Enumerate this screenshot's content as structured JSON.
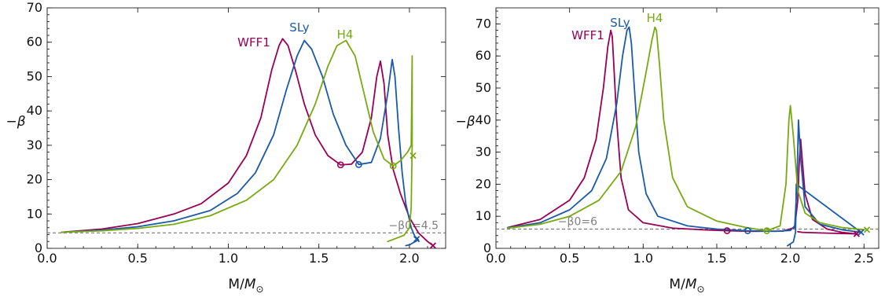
{
  "colors": {
    "WFF1": "#990055",
    "SLy": "#1a5aa8",
    "H4": "#77aa11"
  },
  "chart_data": [
    {
      "type": "line",
      "title": "",
      "xlabel": "M/M_⊙",
      "ylabel": "−β",
      "xlim": [
        0.0,
        2.2
      ],
      "ylim": [
        0,
        70
      ],
      "xticks": [
        "0.0",
        "0.5",
        "1.0",
        "1.5",
        "2.0"
      ],
      "yticks": [
        "0",
        "10",
        "20",
        "30",
        "40",
        "50",
        "60",
        "70"
      ],
      "grid": false,
      "reference_line": {
        "y": 4.5,
        "label": "−β0=4.5"
      },
      "series": [
        {
          "name": "WFF1",
          "x": [
            0.08,
            0.3,
            0.5,
            0.7,
            0.85,
            1.0,
            1.1,
            1.18,
            1.24,
            1.28,
            1.3,
            1.33,
            1.37,
            1.42,
            1.48,
            1.55,
            1.62,
            1.68,
            1.74,
            1.79,
            1.82,
            1.84,
            1.86,
            1.88,
            1.91,
            1.95,
            2.0,
            2.05,
            2.1,
            2.13
          ],
          "y": [
            4.7,
            5.6,
            7.2,
            10.0,
            13.0,
            19.0,
            27.0,
            38.0,
            52.0,
            59.0,
            61.0,
            59.0,
            52.0,
            42.0,
            33.0,
            27.0,
            24.3,
            24.5,
            28.0,
            38.0,
            50.0,
            54.5,
            48.0,
            33.0,
            23.0,
            16.0,
            9.0,
            4.5,
            2.0,
            0.8
          ],
          "markers": [
            {
              "type": "o",
              "x": 1.62,
              "y": 24.3
            },
            {
              "type": "x",
              "x": 2.13,
              "y": 0.8
            }
          ]
        },
        {
          "name": "SLy",
          "x": [
            0.08,
            0.3,
            0.5,
            0.7,
            0.9,
            1.05,
            1.15,
            1.25,
            1.32,
            1.38,
            1.42,
            1.46,
            1.52,
            1.58,
            1.65,
            1.72,
            1.79,
            1.84,
            1.88,
            1.905,
            1.92,
            1.94,
            1.96,
            1.98,
            2.01,
            2.03,
            2.05,
            2.02,
            2.0,
            1.98
          ],
          "y": [
            4.7,
            5.3,
            6.3,
            8.0,
            11.0,
            16.0,
            22.0,
            33.0,
            46.0,
            56.0,
            60.5,
            58.0,
            50.0,
            39.0,
            30.0,
            24.4,
            25.0,
            32.0,
            45.0,
            55.0,
            50.0,
            35.0,
            22.0,
            13.0,
            6.0,
            3.5,
            2.5,
            1.6,
            1.0,
            0.8
          ],
          "markers": [
            {
              "type": "o",
              "x": 1.72,
              "y": 24.4
            },
            {
              "type": "x",
              "x": 2.04,
              "y": 2.7
            }
          ]
        },
        {
          "name": "H4",
          "x": [
            0.08,
            0.3,
            0.5,
            0.7,
            0.9,
            1.1,
            1.25,
            1.38,
            1.48,
            1.55,
            1.6,
            1.65,
            1.7,
            1.75,
            1.8,
            1.86,
            1.91,
            1.95,
            1.99,
            2.01,
            2.015,
            2.015,
            2.01,
            2.0,
            1.97,
            1.92,
            1.88
          ],
          "y": [
            4.7,
            5.1,
            5.8,
            7.0,
            9.5,
            14.0,
            20.0,
            30.0,
            42.0,
            53.0,
            59.0,
            60.5,
            56.0,
            45.0,
            34.0,
            26.0,
            24.0,
            25.5,
            28.0,
            30.0,
            56.0,
            30.0,
            12.0,
            6.0,
            3.8,
            2.8,
            2.0
          ],
          "markers": [
            {
              "type": "o",
              "x": 1.91,
              "y": 24.0
            },
            {
              "type": "x",
              "x": 2.02,
              "y": 27.0
            }
          ]
        }
      ]
    },
    {
      "type": "line",
      "title": "",
      "xlabel": "M/M_⊙",
      "ylabel": "−β",
      "xlim": [
        0.0,
        2.6
      ],
      "ylim": [
        0,
        75
      ],
      "xticks": [
        "0.0",
        "0.5",
        "1.0",
        "1.5",
        "2.0",
        "2.5"
      ],
      "yticks": [
        "0",
        "10",
        "20",
        "30",
        "40",
        "50",
        "60",
        "70"
      ],
      "grid": false,
      "reference_line": {
        "y": 6,
        "label": "−β0=6"
      },
      "series": [
        {
          "name": "WFF1",
          "x": [
            0.08,
            0.3,
            0.5,
            0.6,
            0.68,
            0.73,
            0.76,
            0.78,
            0.79,
            0.8,
            0.82,
            0.85,
            0.9,
            1.0,
            1.2,
            1.4,
            1.57,
            1.75,
            1.95,
            2.03,
            2.05,
            2.06,
            2.07,
            2.08,
            2.1,
            2.15,
            2.25,
            2.35,
            2.45,
            2.2,
            2.08,
            2.05
          ],
          "y": [
            6.5,
            9.0,
            15.0,
            22.0,
            34.0,
            50.0,
            63.0,
            68.0,
            66.0,
            58.0,
            40.0,
            22.0,
            12.0,
            8.0,
            6.3,
            5.8,
            5.5,
            5.3,
            5.4,
            6.5,
            15.0,
            27.0,
            34.0,
            28.0,
            17.0,
            9.0,
            6.0,
            5.0,
            4.5,
            4.8,
            5.0,
            5.2
          ],
          "markers": [
            {
              "type": "o",
              "x": 1.57,
              "y": 5.5
            },
            {
              "type": "x",
              "x": 2.45,
              "y": 4.5
            }
          ]
        },
        {
          "name": "SLy",
          "x": [
            0.08,
            0.3,
            0.5,
            0.65,
            0.75,
            0.82,
            0.86,
            0.89,
            0.905,
            0.92,
            0.94,
            0.97,
            1.02,
            1.1,
            1.3,
            1.5,
            1.71,
            1.9,
            2.0,
            2.03,
            2.045,
            2.055,
            2.07,
            2.1,
            2.2,
            2.35,
            2.48,
            2.04,
            2.035,
            2.02,
            1.98
          ],
          "y": [
            6.4,
            8.0,
            12.0,
            18.0,
            28.0,
            45.0,
            60.0,
            68.0,
            69.0,
            64.0,
            50.0,
            30.0,
            17.0,
            10.0,
            7.0,
            6.0,
            5.5,
            5.3,
            5.6,
            7.0,
            20.0,
            40.0,
            28.0,
            13.0,
            7.5,
            5.8,
            5.0,
            20.0,
            5.0,
            2.0,
            0.8
          ],
          "markers": [
            {
              "type": "o",
              "x": 1.71,
              "y": 5.5
            },
            {
              "type": "x",
              "x": 2.48,
              "y": 5.0
            }
          ]
        },
        {
          "name": "H4",
          "x": [
            0.08,
            0.3,
            0.5,
            0.7,
            0.85,
            0.95,
            1.02,
            1.06,
            1.08,
            1.09,
            1.11,
            1.14,
            1.2,
            1.3,
            1.5,
            1.7,
            1.84,
            1.93,
            1.97,
            1.99,
            2.0,
            2.02,
            2.05,
            2.1,
            2.2,
            2.35,
            2.5
          ],
          "y": [
            6.3,
            7.5,
            10.0,
            15.0,
            24.0,
            38.0,
            55.0,
            65.0,
            69.0,
            68.0,
            58.0,
            40.0,
            22.0,
            13.0,
            8.5,
            6.5,
            5.5,
            7.0,
            20.0,
            40.0,
            44.5,
            35.0,
            18.0,
            11.0,
            8.0,
            6.5,
            5.8
          ],
          "markers": [
            {
              "type": "o",
              "x": 1.84,
              "y": 5.5
            },
            {
              "type": "x",
              "x": 2.52,
              "y": 5.8
            }
          ]
        }
      ]
    }
  ]
}
